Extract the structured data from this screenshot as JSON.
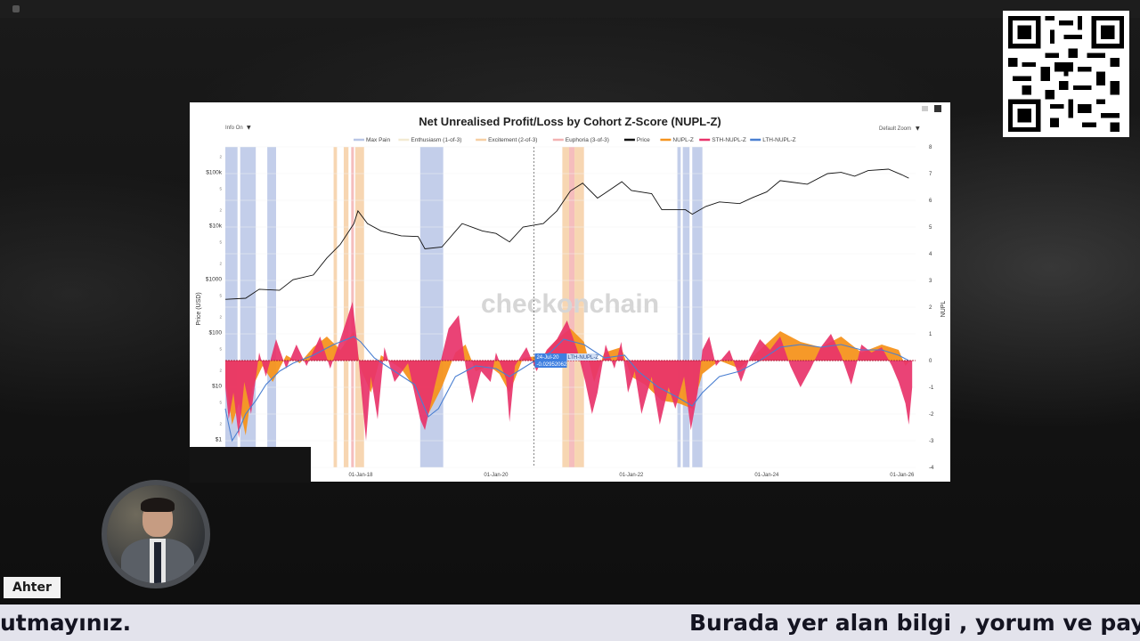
{
  "ticker": {
    "left_text": "utmayınız.",
    "right_text": "Burada yer alan bilgi , yorum ve paylaşımla"
  },
  "presenter": {
    "name": "Ahter"
  },
  "chart_data": {
    "type": "line",
    "title": "Net Unrealised Profit/Loss by Cohort Z-Score (NUPL-Z)",
    "controls": {
      "left": "Info On",
      "right": "Default Zoom"
    },
    "watermark": "checkonchain",
    "legend": [
      {
        "name": "Max Pain",
        "color": "#b9c6e6"
      },
      {
        "name": "Enthusiasm (1-of-3)",
        "color": "#f3ead2"
      },
      {
        "name": "Excitement (2-of-3)",
        "color": "#f6cfa4"
      },
      {
        "name": "Euphoria (3-of-3)",
        "color": "#f3b2b2"
      },
      {
        "name": "Price",
        "color": "#111111"
      },
      {
        "name": "NUPL-Z",
        "color": "#f5931e"
      },
      {
        "name": "STH-NUPL-Z",
        "color": "#e8336a"
      },
      {
        "name": "LTH-NUPL-Z",
        "color": "#4a7fd1"
      }
    ],
    "ylabel_left": "Price (USD)",
    "ylabel_right": "NUPL",
    "x_range": [
      2016.0,
      2026.2
    ],
    "x_ticks": [
      {
        "value": 2018.0,
        "label": "01-Jan-18"
      },
      {
        "value": 2020.0,
        "label": "01-Jan-20"
      },
      {
        "value": 2022.0,
        "label": "01-Jan-22"
      },
      {
        "value": 2024.0,
        "label": "01-Jan-24"
      },
      {
        "value": 2026.0,
        "label": "01-Jan-26"
      }
    ],
    "y_left_ticks": [
      {
        "value": 100000,
        "label": "$100k"
      },
      {
        "value": 10000,
        "label": "$10k"
      },
      {
        "value": 1000,
        "label": "$1000"
      },
      {
        "value": 100,
        "label": "$100"
      },
      {
        "value": 10,
        "label": "$10"
      },
      {
        "value": 1,
        "label": "$1"
      }
    ],
    "y_left_minor": [
      {
        "value": 200000,
        "label": "2"
      },
      {
        "value": 50000,
        "label": "5"
      },
      {
        "value": 20000,
        "label": "2"
      },
      {
        "value": 5000,
        "label": "5"
      },
      {
        "value": 2000,
        "label": "2"
      },
      {
        "value": 500,
        "label": "5"
      },
      {
        "value": 200,
        "label": "2"
      },
      {
        "value": 50,
        "label": "5"
      },
      {
        "value": 20,
        "label": "2"
      },
      {
        "value": 5,
        "label": "5"
      },
      {
        "value": 2,
        "label": "2"
      },
      {
        "value": 0.5,
        "label": "5"
      }
    ],
    "y_right_range": [
      -4,
      8
    ],
    "y_right_ticks": [
      8,
      7,
      6,
      5,
      4,
      3,
      2,
      1,
      0,
      -1,
      -2,
      -3,
      -4
    ],
    "hover": {
      "date": "24-Jul-20",
      "value": "-0.02952062",
      "series": "LTH-NUPL-Z",
      "x": 2020.56
    },
    "bands": [
      {
        "type": "Max Pain",
        "x0": 2016.0,
        "x1": 2016.18
      },
      {
        "type": "Max Pain",
        "x0": 2016.22,
        "x1": 2016.45
      },
      {
        "type": "Max Pain",
        "x0": 2016.62,
        "x1": 2016.75
      },
      {
        "type": "Excitement (2-of-3)",
        "x0": 2017.6,
        "x1": 2017.65
      },
      {
        "type": "Excitement (2-of-3)",
        "x0": 2017.75,
        "x1": 2017.82
      },
      {
        "type": "Euphoria (3-of-3)",
        "x0": 2017.86,
        "x1": 2017.9
      },
      {
        "type": "Excitement (2-of-3)",
        "x0": 2017.92,
        "x1": 2018.05
      },
      {
        "type": "Max Pain",
        "x0": 2018.88,
        "x1": 2019.22
      },
      {
        "type": "Excitement (2-of-3)",
        "x0": 2020.98,
        "x1": 2021.08
      },
      {
        "type": "Euphoria (3-of-3)",
        "x0": 2021.08,
        "x1": 2021.16
      },
      {
        "type": "Excitement (2-of-3)",
        "x0": 2021.16,
        "x1": 2021.3
      },
      {
        "type": "Max Pain",
        "x0": 2022.68,
        "x1": 2022.73
      },
      {
        "type": "Max Pain",
        "x0": 2022.76,
        "x1": 2022.86
      },
      {
        "type": "Max Pain",
        "x0": 2022.9,
        "x1": 2023.05
      }
    ],
    "price": [
      [
        2016.0,
        420
      ],
      [
        2016.3,
        440
      ],
      [
        2016.5,
        650
      ],
      [
        2016.8,
        620
      ],
      [
        2017.0,
        980
      ],
      [
        2017.3,
        1200
      ],
      [
        2017.5,
        2500
      ],
      [
        2017.7,
        4500
      ],
      [
        2017.9,
        11000
      ],
      [
        2017.96,
        19000
      ],
      [
        2018.1,
        11000
      ],
      [
        2018.3,
        8000
      ],
      [
        2018.6,
        6500
      ],
      [
        2018.85,
        6300
      ],
      [
        2018.95,
        3700
      ],
      [
        2019.2,
        4000
      ],
      [
        2019.5,
        11000
      ],
      [
        2019.8,
        8000
      ],
      [
        2020.0,
        7200
      ],
      [
        2020.2,
        5000
      ],
      [
        2020.4,
        9500
      ],
      [
        2020.7,
        11000
      ],
      [
        2020.9,
        19000
      ],
      [
        2021.1,
        45000
      ],
      [
        2021.28,
        63000
      ],
      [
        2021.5,
        33000
      ],
      [
        2021.6,
        40000
      ],
      [
        2021.86,
        67000
      ],
      [
        2022.0,
        46000
      ],
      [
        2022.3,
        40000
      ],
      [
        2022.45,
        20000
      ],
      [
        2022.8,
        20000
      ],
      [
        2022.9,
        16500
      ],
      [
        2023.1,
        23000
      ],
      [
        2023.3,
        28000
      ],
      [
        2023.6,
        26000
      ],
      [
        2023.8,
        34000
      ],
      [
        2024.0,
        43000
      ],
      [
        2024.2,
        70000
      ],
      [
        2024.6,
        60000
      ],
      [
        2024.9,
        95000
      ],
      [
        2025.1,
        100000
      ],
      [
        2025.3,
        85000
      ],
      [
        2025.5,
        108000
      ],
      [
        2025.8,
        115000
      ],
      [
        2026.0,
        90000
      ],
      [
        2026.1,
        78000
      ]
    ],
    "nupl_z": [
      [
        2016.0,
        -0.6
      ],
      [
        2016.1,
        -2.4
      ],
      [
        2016.2,
        -1.6
      ],
      [
        2016.3,
        -2.8
      ],
      [
        2016.4,
        -1.0
      ],
      [
        2016.55,
        -0.2
      ],
      [
        2016.7,
        -0.8
      ],
      [
        2016.9,
        0.2
      ],
      [
        2017.1,
        -0.1
      ],
      [
        2017.3,
        0.5
      ],
      [
        2017.5,
        0.9
      ],
      [
        2017.7,
        0.4
      ],
      [
        2017.9,
        1.1
      ],
      [
        2018.0,
        -0.3
      ],
      [
        2018.15,
        -1.2
      ],
      [
        2018.3,
        0.2
      ],
      [
        2018.6,
        -0.3
      ],
      [
        2018.9,
        -1.4
      ],
      [
        2019.0,
        -2.0
      ],
      [
        2019.2,
        -1.0
      ],
      [
        2019.4,
        0.3
      ],
      [
        2019.55,
        0.6
      ],
      [
        2019.7,
        -0.4
      ],
      [
        2019.9,
        -0.2
      ],
      [
        2020.05,
        -0.5
      ],
      [
        2020.2,
        -1.2
      ],
      [
        2020.4,
        0.1
      ],
      [
        2020.7,
        0.2
      ],
      [
        2020.9,
        0.8
      ],
      [
        2021.1,
        1.2
      ],
      [
        2021.3,
        0.7
      ],
      [
        2021.45,
        -0.8
      ],
      [
        2021.6,
        0.3
      ],
      [
        2021.85,
        0.5
      ],
      [
        2022.0,
        -0.6
      ],
      [
        2022.2,
        -0.9
      ],
      [
        2022.45,
        -1.5
      ],
      [
        2022.7,
        -1.6
      ],
      [
        2022.9,
        -1.8
      ],
      [
        2023.05,
        -0.5
      ],
      [
        2023.3,
        0.0
      ],
      [
        2023.6,
        -0.3
      ],
      [
        2023.9,
        0.4
      ],
      [
        2024.2,
        1.1
      ],
      [
        2024.5,
        0.7
      ],
      [
        2024.8,
        0.5
      ],
      [
        2025.1,
        0.9
      ],
      [
        2025.4,
        0.3
      ],
      [
        2025.7,
        0.6
      ],
      [
        2025.95,
        0.4
      ],
      [
        2026.05,
        -0.2
      ],
      [
        2026.12,
        0.0
      ]
    ],
    "sth_nupl_z": [
      [
        2016.0,
        -1.0
      ],
      [
        2016.05,
        -2.2
      ],
      [
        2016.12,
        -1.2
      ],
      [
        2016.2,
        -2.9
      ],
      [
        2016.28,
        -0.8
      ],
      [
        2016.38,
        -2.0
      ],
      [
        2016.5,
        0.3
      ],
      [
        2016.6,
        -0.6
      ],
      [
        2016.75,
        0.8
      ],
      [
        2016.9,
        -0.3
      ],
      [
        2017.05,
        0.6
      ],
      [
        2017.2,
        -0.2
      ],
      [
        2017.4,
        0.9
      ],
      [
        2017.55,
        -0.3
      ],
      [
        2017.7,
        0.8
      ],
      [
        2017.88,
        2.2
      ],
      [
        2017.95,
        0.6
      ],
      [
        2018.02,
        -1.4
      ],
      [
        2018.08,
        -3.0
      ],
      [
        2018.15,
        -0.6
      ],
      [
        2018.25,
        -2.2
      ],
      [
        2018.35,
        0.5
      ],
      [
        2018.5,
        -0.8
      ],
      [
        2018.7,
        -0.1
      ],
      [
        2018.88,
        -2.2
      ],
      [
        2018.95,
        -2.6
      ],
      [
        2019.1,
        -0.9
      ],
      [
        2019.3,
        1.2
      ],
      [
        2019.45,
        1.7
      ],
      [
        2019.55,
        -0.2
      ],
      [
        2019.65,
        -1.6
      ],
      [
        2019.78,
        -0.4
      ],
      [
        2019.92,
        -0.8
      ],
      [
        2020.0,
        0.3
      ],
      [
        2020.15,
        -0.7
      ],
      [
        2020.2,
        -2.3
      ],
      [
        2020.28,
        -0.2
      ],
      [
        2020.45,
        0.5
      ],
      [
        2020.6,
        -0.4
      ],
      [
        2020.75,
        0.4
      ],
      [
        2020.9,
        0.8
      ],
      [
        2021.05,
        1.5
      ],
      [
        2021.2,
        0.4
      ],
      [
        2021.32,
        -0.8
      ],
      [
        2021.42,
        -2.0
      ],
      [
        2021.5,
        -1.2
      ],
      [
        2021.62,
        0.6
      ],
      [
        2021.75,
        -0.3
      ],
      [
        2021.85,
        0.7
      ],
      [
        2021.95,
        -1.2
      ],
      [
        2022.05,
        -0.4
      ],
      [
        2022.15,
        -2.0
      ],
      [
        2022.3,
        -0.6
      ],
      [
        2022.42,
        -2.4
      ],
      [
        2022.55,
        -1.0
      ],
      [
        2022.65,
        -1.8
      ],
      [
        2022.78,
        -0.6
      ],
      [
        2022.88,
        -2.6
      ],
      [
        2022.98,
        -1.2
      ],
      [
        2023.05,
        0.4
      ],
      [
        2023.15,
        0.9
      ],
      [
        2023.25,
        -0.2
      ],
      [
        2023.45,
        0.4
      ],
      [
        2023.62,
        -0.8
      ],
      [
        2023.75,
        0.1
      ],
      [
        2023.9,
        0.8
      ],
      [
        2024.05,
        0.4
      ],
      [
        2024.2,
        0.9
      ],
      [
        2024.35,
        -0.2
      ],
      [
        2024.5,
        -1.0
      ],
      [
        2024.65,
        -0.3
      ],
      [
        2024.8,
        0.5
      ],
      [
        2024.95,
        1.0
      ],
      [
        2025.1,
        0.2
      ],
      [
        2025.25,
        -0.9
      ],
      [
        2025.4,
        0.6
      ],
      [
        2025.55,
        0.3
      ],
      [
        2025.7,
        0.5
      ],
      [
        2025.85,
        -0.2
      ],
      [
        2025.95,
        -0.8
      ],
      [
        2026.05,
        -1.6
      ],
      [
        2026.1,
        -2.4
      ],
      [
        2026.15,
        -1.0
      ]
    ],
    "lth_nupl_z": [
      [
        2016.0,
        -1.8
      ],
      [
        2016.1,
        -3.0
      ],
      [
        2016.2,
        -2.6
      ],
      [
        2016.3,
        -2.0
      ],
      [
        2016.45,
        -1.5
      ],
      [
        2016.6,
        -0.9
      ],
      [
        2016.8,
        -0.4
      ],
      [
        2017.0,
        -0.1
      ],
      [
        2017.3,
        0.2
      ],
      [
        2017.6,
        0.6
      ],
      [
        2017.9,
        0.9
      ],
      [
        2018.0,
        0.7
      ],
      [
        2018.2,
        0.1
      ],
      [
        2018.5,
        -0.4
      ],
      [
        2018.8,
        -0.9
      ],
      [
        2019.0,
        -2.1
      ],
      [
        2019.15,
        -1.8
      ],
      [
        2019.4,
        -0.6
      ],
      [
        2019.7,
        -0.2
      ],
      [
        2020.0,
        -0.3
      ],
      [
        2020.2,
        -0.6
      ],
      [
        2020.56,
        -0.03
      ],
      [
        2020.8,
        0.3
      ],
      [
        2021.0,
        0.8
      ],
      [
        2021.3,
        0.6
      ],
      [
        2021.6,
        0.1
      ],
      [
        2021.9,
        0.2
      ],
      [
        2022.1,
        -0.4
      ],
      [
        2022.4,
        -1.0
      ],
      [
        2022.7,
        -1.4
      ],
      [
        2022.9,
        -1.7
      ],
      [
        2023.05,
        -1.2
      ],
      [
        2023.3,
        -0.6
      ],
      [
        2023.6,
        -0.4
      ],
      [
        2023.9,
        0.0
      ],
      [
        2024.2,
        0.5
      ],
      [
        2024.5,
        0.6
      ],
      [
        2024.8,
        0.5
      ],
      [
        2025.1,
        0.6
      ],
      [
        2025.4,
        0.4
      ],
      [
        2025.7,
        0.4
      ],
      [
        2025.95,
        0.2
      ],
      [
        2026.1,
        0.0
      ]
    ]
  }
}
